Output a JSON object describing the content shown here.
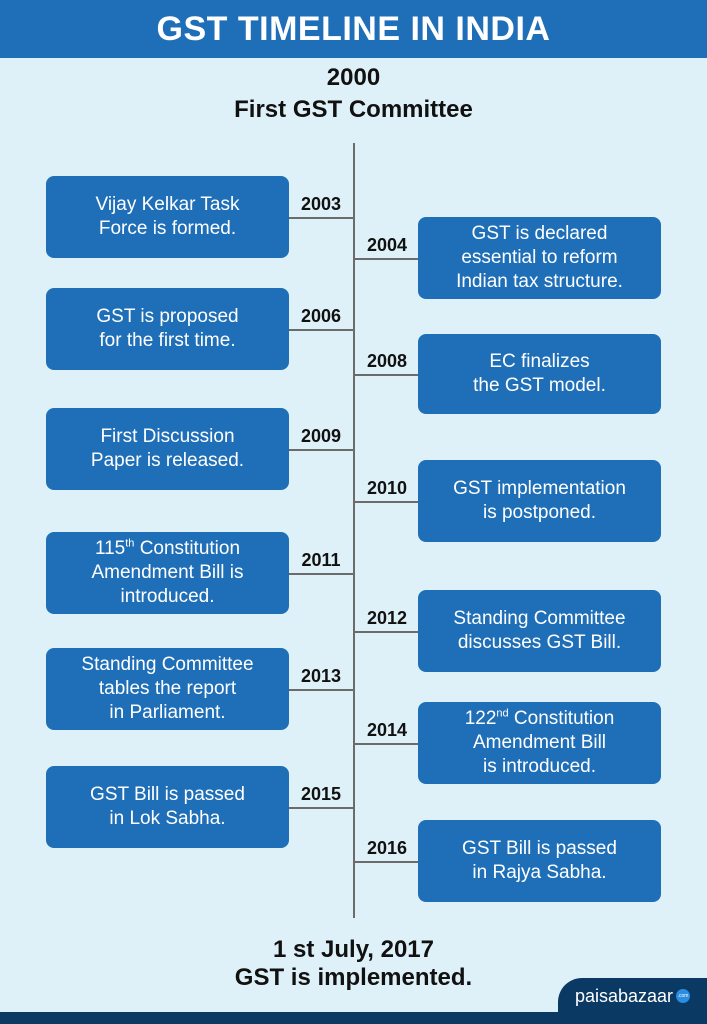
{
  "title": "GST TIMELINE IN INDIA",
  "start": {
    "year": "2000",
    "label": "First GST Committee"
  },
  "events": [
    {
      "year": "2003",
      "side": "left",
      "lines": [
        "Vijay Kelkar Task",
        "Force is formed."
      ]
    },
    {
      "year": "2004",
      "side": "right",
      "lines": [
        "GST is declared",
        "essential to reform",
        "Indian tax structure."
      ]
    },
    {
      "year": "2006",
      "side": "left",
      "lines": [
        "GST is proposed",
        "for the first time."
      ]
    },
    {
      "year": "2008",
      "side": "right",
      "lines": [
        "EC finalizes",
        "the GST model."
      ]
    },
    {
      "year": "2009",
      "side": "left",
      "lines": [
        "First Discussion",
        "Paper is released."
      ]
    },
    {
      "year": "2010",
      "side": "right",
      "lines": [
        "GST implementation",
        "is postponed."
      ]
    },
    {
      "year": "2011",
      "side": "left",
      "lines": [
        "115|th| Constitution",
        "Amendment Bill is",
        "introduced."
      ]
    },
    {
      "year": "2012",
      "side": "right",
      "lines": [
        "Standing Committee",
        "discusses GST Bill."
      ]
    },
    {
      "year": "2013",
      "side": "left",
      "lines": [
        "Standing Committee",
        "tables the report",
        "in Parliament."
      ]
    },
    {
      "year": "2014",
      "side": "right",
      "lines": [
        "122|nd| Constitution",
        "Amendment Bill",
        "is introduced."
      ]
    },
    {
      "year": "2015",
      "side": "left",
      "lines": [
        "GST Bill is passed",
        "in Lok Sabha."
      ]
    },
    {
      "year": "2016",
      "side": "right",
      "lines": [
        "GST Bill is passed",
        "in Rajya Sabha."
      ]
    }
  ],
  "end": {
    "date": "1 st July, 2017",
    "label": "GST is implemented."
  },
  "brand": {
    "name": "paisabazaar",
    "badge": ".com"
  },
  "colors": {
    "banner": "#1f6fb8",
    "box": "#1f6fb8",
    "background": "#dff1f8",
    "axis": "#6b6b6b",
    "footer": "#0a3a64"
  }
}
